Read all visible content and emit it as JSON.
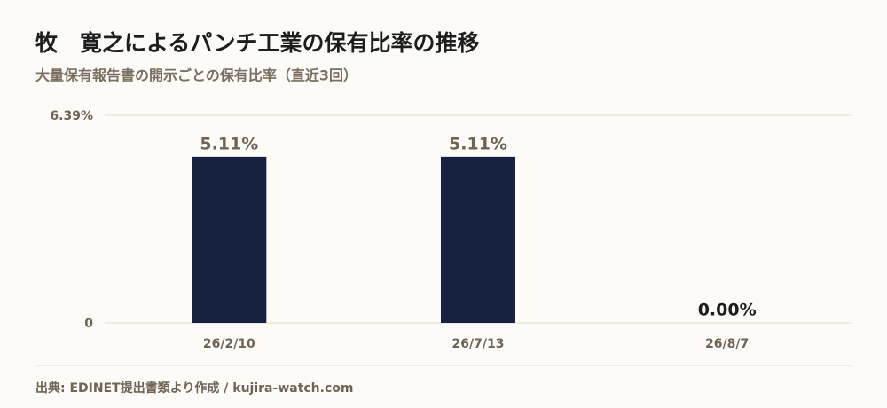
{
  "chart_data": {
    "type": "bar",
    "title": "牧　寛之によるパンチ工業の保有比率の推移",
    "subtitle": "大量保有報告書の開示ごとの保有比率（直近3回）",
    "categories": [
      "26/2/10",
      "26/7/13",
      "26/8/7"
    ],
    "values": [
      5.11,
      5.11,
      0
    ],
    "value_labels": [
      "5.11%",
      "5.11%",
      "0.00%"
    ],
    "color": "#172240",
    "ylim": [
      0,
      6.39
    ],
    "yticks": [
      0,
      {
        "value": 6.39,
        "label": "6.39%"
      }
    ],
    "grid": true,
    "source": "出典: EDINET提出書類より作成 / kujira-watch.com"
  }
}
